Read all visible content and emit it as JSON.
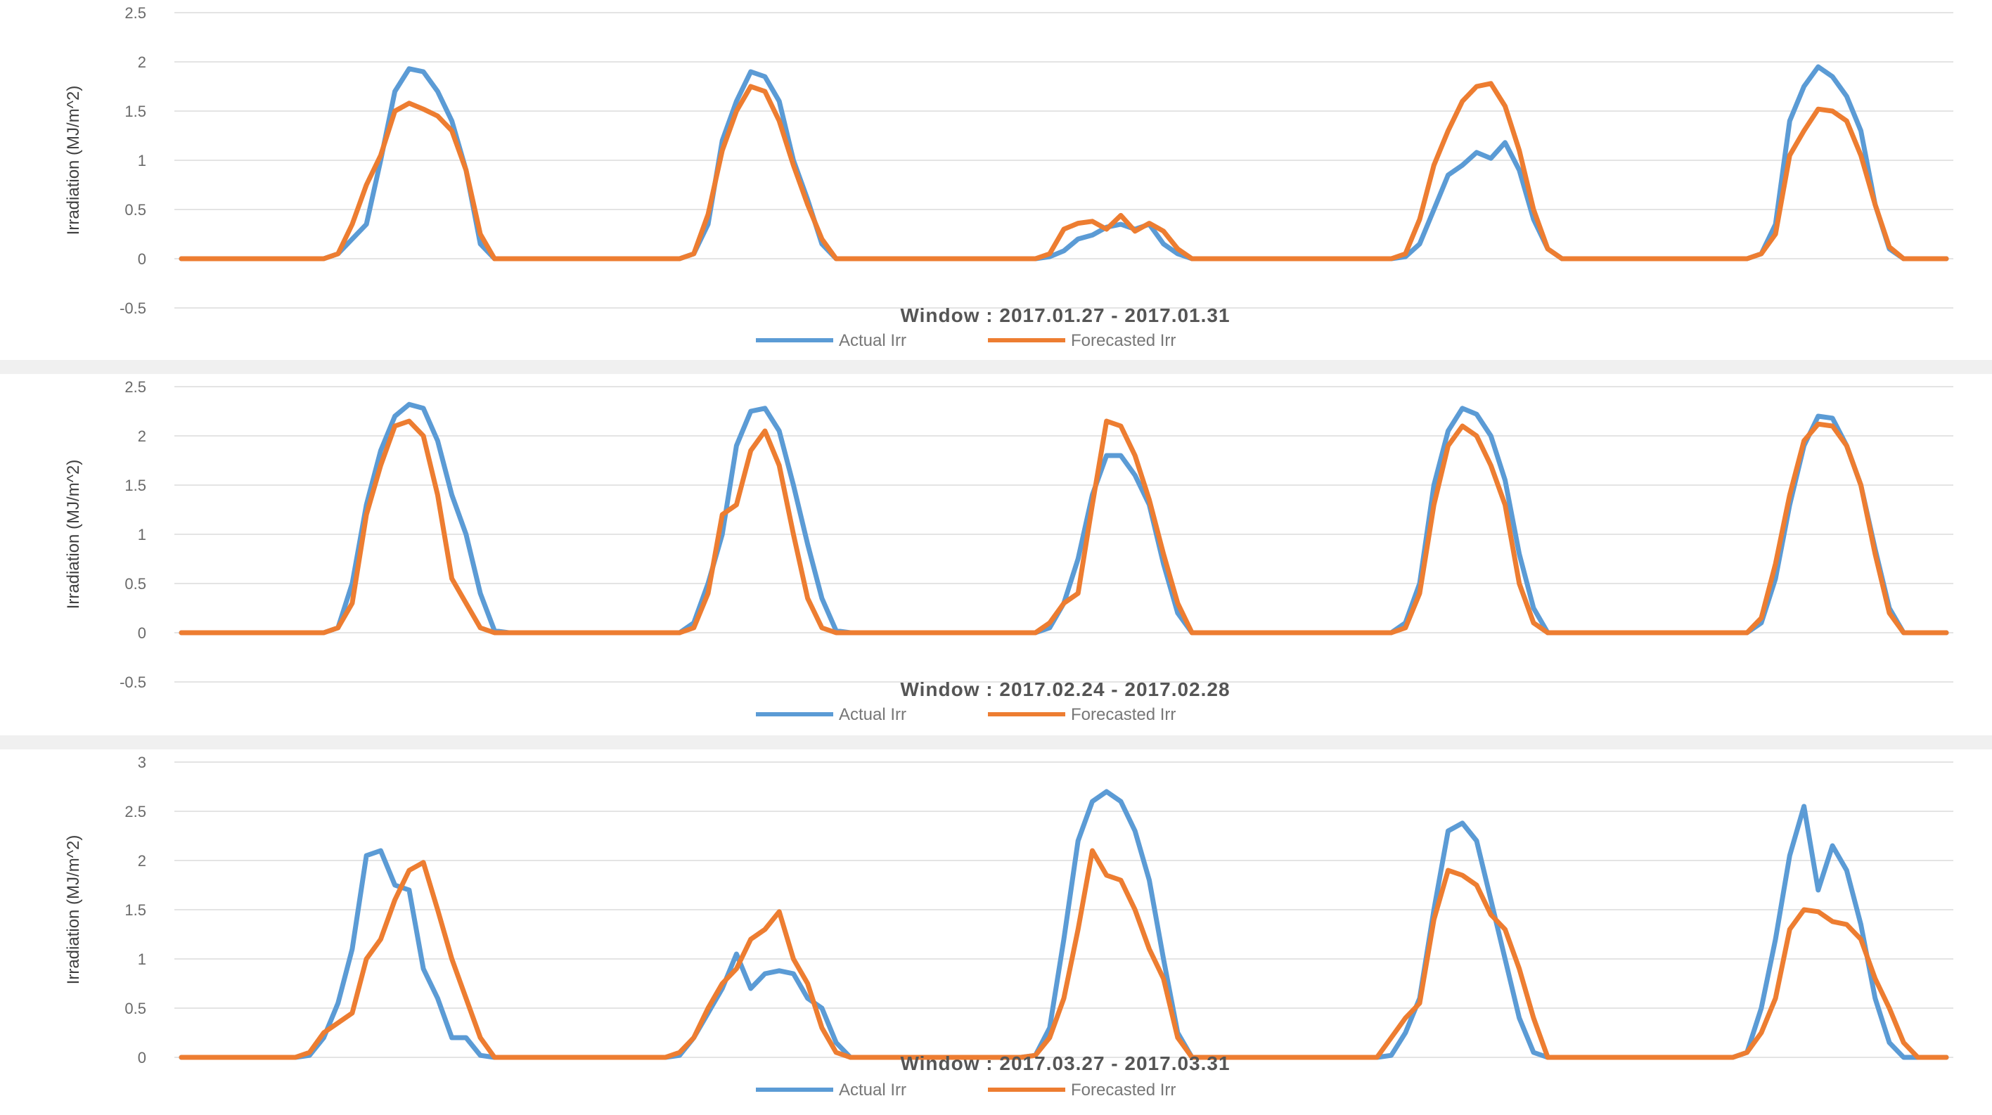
{
  "colors": {
    "actual": "#5b9bd5",
    "forecast": "#ed7d31",
    "grid": "#e4e4e4",
    "text": "#6a6a6a"
  },
  "chart_data": [
    {
      "type": "line",
      "title": "Window : 2017.01.27 - 2017.01.31",
      "ylabel": "Irradiation (MJ/m^2)",
      "xlabel": "",
      "ylim": [
        -0.5,
        2.5
      ],
      "yticks": [
        2.5,
        2,
        1.5,
        1,
        0.5,
        0,
        -0.5
      ],
      "ytick_labels": [
        "2.5",
        "2",
        "1.5",
        "1",
        "0.5",
        "0",
        "-0.5"
      ],
      "legend": "bottom",
      "grid": true,
      "series": [
        {
          "name": "Actual Irr",
          "color": "#5b9bd5",
          "values": [
            0,
            0,
            0,
            0,
            0,
            0,
            0,
            0,
            0,
            0,
            0,
            0.05,
            0.2,
            0.35,
            1.0,
            1.7,
            1.93,
            1.9,
            1.7,
            1.4,
            0.9,
            0.15,
            0,
            0,
            0,
            0,
            0,
            0,
            0,
            0,
            0,
            0,
            0,
            0,
            0,
            0,
            0.05,
            0.35,
            1.2,
            1.6,
            1.9,
            1.85,
            1.6,
            1.0,
            0.6,
            0.15,
            0,
            0,
            0,
            0,
            0,
            0,
            0,
            0,
            0,
            0,
            0,
            0,
            0,
            0,
            0,
            0.02,
            0.08,
            0.2,
            0.24,
            0.32,
            0.35,
            0.3,
            0.35,
            0.15,
            0.05,
            0,
            0,
            0,
            0,
            0,
            0,
            0,
            0,
            0,
            0,
            0,
            0,
            0,
            0,
            0,
            0.02,
            0.15,
            0.5,
            0.85,
            0.95,
            1.08,
            1.02,
            1.18,
            0.9,
            0.4,
            0.1,
            0,
            0,
            0,
            0,
            0,
            0,
            0,
            0,
            0,
            0,
            0,
            0,
            0,
            0,
            0.05,
            0.35,
            1.4,
            1.75,
            1.95,
            1.85,
            1.65,
            1.3,
            0.55,
            0.1,
            0,
            0,
            0,
            0
          ]
        },
        {
          "name": "Forecasted Irr",
          "color": "#ed7d31",
          "values": [
            0,
            0,
            0,
            0,
            0,
            0,
            0,
            0,
            0,
            0,
            0,
            0.05,
            0.35,
            0.75,
            1.05,
            1.5,
            1.58,
            1.52,
            1.45,
            1.3,
            0.9,
            0.25,
            0,
            0,
            0,
            0,
            0,
            0,
            0,
            0,
            0,
            0,
            0,
            0,
            0,
            0,
            0.05,
            0.45,
            1.1,
            1.5,
            1.75,
            1.7,
            1.4,
            0.95,
            0.55,
            0.2,
            0,
            0,
            0,
            0,
            0,
            0,
            0,
            0,
            0,
            0,
            0,
            0,
            0,
            0,
            0,
            0.05,
            0.3,
            0.36,
            0.38,
            0.3,
            0.44,
            0.28,
            0.36,
            0.28,
            0.1,
            0,
            0,
            0,
            0,
            0,
            0,
            0,
            0,
            0,
            0,
            0,
            0,
            0,
            0,
            0,
            0.05,
            0.4,
            0.95,
            1.3,
            1.6,
            1.75,
            1.78,
            1.55,
            1.1,
            0.5,
            0.1,
            0,
            0,
            0,
            0,
            0,
            0,
            0,
            0,
            0,
            0,
            0,
            0,
            0,
            0,
            0.05,
            0.25,
            1.05,
            1.3,
            1.52,
            1.5,
            1.4,
            1.05,
            0.55,
            0.12,
            0,
            0,
            0,
            0
          ]
        }
      ]
    },
    {
      "type": "line",
      "title": "Window : 2017.02.24 - 2017.02.28",
      "ylabel": "Irradiation (MJ/m^2)",
      "xlabel": "",
      "ylim": [
        -0.5,
        2.5
      ],
      "yticks": [
        2.5,
        2,
        1.5,
        1,
        0.5,
        0,
        -0.5
      ],
      "ytick_labels": [
        "2.5",
        "2",
        "1.5",
        "1",
        "0.5",
        "0",
        "-0.5"
      ],
      "legend": "bottom",
      "grid": true,
      "series": [
        {
          "name": "Actual Irr",
          "color": "#5b9bd5",
          "values": [
            0,
            0,
            0,
            0,
            0,
            0,
            0,
            0,
            0,
            0,
            0,
            0.05,
            0.5,
            1.3,
            1.85,
            2.2,
            2.32,
            2.28,
            1.95,
            1.4,
            1.0,
            0.4,
            0.02,
            0,
            0,
            0,
            0,
            0,
            0,
            0,
            0,
            0,
            0,
            0,
            0,
            0,
            0.1,
            0.5,
            1.0,
            1.9,
            2.25,
            2.28,
            2.05,
            1.5,
            0.9,
            0.35,
            0.02,
            0,
            0,
            0,
            0,
            0,
            0,
            0,
            0,
            0,
            0,
            0,
            0,
            0,
            0,
            0.05,
            0.3,
            0.75,
            1.4,
            1.8,
            1.8,
            1.6,
            1.3,
            0.7,
            0.2,
            0,
            0,
            0,
            0,
            0,
            0,
            0,
            0,
            0,
            0,
            0,
            0,
            0,
            0,
            0,
            0.1,
            0.5,
            1.5,
            2.05,
            2.28,
            2.22,
            2.0,
            1.55,
            0.8,
            0.25,
            0,
            0,
            0,
            0,
            0,
            0,
            0,
            0,
            0,
            0,
            0,
            0,
            0,
            0,
            0,
            0.1,
            0.55,
            1.3,
            1.9,
            2.2,
            2.18,
            1.9,
            1.5,
            0.85,
            0.25,
            0,
            0,
            0,
            0
          ]
        },
        {
          "name": "Forecasted Irr",
          "color": "#ed7d31",
          "values": [
            0,
            0,
            0,
            0,
            0,
            0,
            0,
            0,
            0,
            0,
            0,
            0.05,
            0.3,
            1.2,
            1.7,
            2.1,
            2.15,
            2.0,
            1.4,
            0.55,
            0.3,
            0.05,
            0,
            0,
            0,
            0,
            0,
            0,
            0,
            0,
            0,
            0,
            0,
            0,
            0,
            0,
            0.05,
            0.4,
            1.2,
            1.3,
            1.85,
            2.05,
            1.7,
            1.0,
            0.35,
            0.05,
            0,
            0,
            0,
            0,
            0,
            0,
            0,
            0,
            0,
            0,
            0,
            0,
            0,
            0,
            0,
            0.1,
            0.3,
            0.4,
            1.3,
            2.15,
            2.1,
            1.8,
            1.35,
            0.8,
            0.3,
            0,
            0,
            0,
            0,
            0,
            0,
            0,
            0,
            0,
            0,
            0,
            0,
            0,
            0,
            0,
            0.05,
            0.4,
            1.3,
            1.9,
            2.1,
            2.0,
            1.7,
            1.3,
            0.5,
            0.1,
            0,
            0,
            0,
            0,
            0,
            0,
            0,
            0,
            0,
            0,
            0,
            0,
            0,
            0,
            0,
            0.15,
            0.7,
            1.4,
            1.95,
            2.12,
            2.1,
            1.9,
            1.5,
            0.8,
            0.2,
            0,
            0,
            0,
            0
          ]
        }
      ]
    },
    {
      "type": "line",
      "title": "Window : 2017.03.27 - 2017.03.31",
      "ylabel": "Irradiation (MJ/m^2)",
      "xlabel": "",
      "ylim": [
        0,
        3
      ],
      "yticks": [
        3,
        2.5,
        2,
        1.5,
        1,
        0.5,
        0
      ],
      "ytick_labels": [
        "3",
        "2.5",
        "2",
        "1.5",
        "1",
        "0.5",
        "0"
      ],
      "legend": "bottom",
      "grid": true,
      "series": [
        {
          "name": "Actual Irr",
          "color": "#5b9bd5",
          "values": [
            0,
            0,
            0,
            0,
            0,
            0,
            0,
            0,
            0,
            0.02,
            0.2,
            0.55,
            1.1,
            2.05,
            2.1,
            1.75,
            1.7,
            0.9,
            0.6,
            0.2,
            0.2,
            0.02,
            0,
            0,
            0,
            0,
            0,
            0,
            0,
            0,
            0,
            0,
            0,
            0,
            0,
            0.02,
            0.2,
            0.45,
            0.7,
            1.05,
            0.7,
            0.85,
            0.88,
            0.85,
            0.6,
            0.5,
            0.15,
            0,
            0,
            0,
            0,
            0,
            0,
            0,
            0,
            0,
            0,
            0,
            0,
            0,
            0.02,
            0.3,
            1.2,
            2.2,
            2.6,
            2.7,
            2.6,
            2.3,
            1.8,
            1.0,
            0.25,
            0,
            0,
            0,
            0,
            0,
            0,
            0,
            0,
            0,
            0,
            0,
            0,
            0,
            0,
            0.02,
            0.25,
            0.6,
            1.5,
            2.3,
            2.38,
            2.2,
            1.6,
            1.0,
            0.4,
            0.05,
            0,
            0,
            0,
            0,
            0,
            0,
            0,
            0,
            0,
            0,
            0,
            0,
            0,
            0,
            0.05,
            0.5,
            1.2,
            2.05,
            2.55,
            1.7,
            2.15,
            1.9,
            1.35,
            0.6,
            0.15,
            0,
            0,
            0,
            0
          ]
        },
        {
          "name": "Forecasted Irr",
          "color": "#ed7d31",
          "values": [
            0,
            0,
            0,
            0,
            0,
            0,
            0,
            0,
            0,
            0.05,
            0.25,
            0.35,
            0.45,
            1.0,
            1.2,
            1.6,
            1.9,
            1.98,
            1.5,
            1.0,
            0.6,
            0.2,
            0,
            0,
            0,
            0,
            0,
            0,
            0,
            0,
            0,
            0,
            0,
            0,
            0,
            0.05,
            0.2,
            0.5,
            0.75,
            0.9,
            1.2,
            1.3,
            1.48,
            1.0,
            0.75,
            0.3,
            0.05,
            0,
            0,
            0,
            0,
            0,
            0,
            0,
            0,
            0,
            0,
            0,
            0,
            0,
            0.02,
            0.2,
            0.6,
            1.3,
            2.1,
            1.85,
            1.8,
            1.5,
            1.1,
            0.8,
            0.2,
            0,
            0,
            0,
            0,
            0,
            0,
            0,
            0,
            0,
            0,
            0,
            0,
            0,
            0,
            0.2,
            0.4,
            0.55,
            1.4,
            1.9,
            1.85,
            1.75,
            1.45,
            1.3,
            0.9,
            0.4,
            0,
            0,
            0,
            0,
            0,
            0,
            0,
            0,
            0,
            0,
            0,
            0,
            0,
            0,
            0.05,
            0.25,
            0.6,
            1.3,
            1.5,
            1.48,
            1.38,
            1.35,
            1.2,
            0.8,
            0.5,
            0.15,
            0,
            0,
            0
          ]
        }
      ]
    }
  ]
}
